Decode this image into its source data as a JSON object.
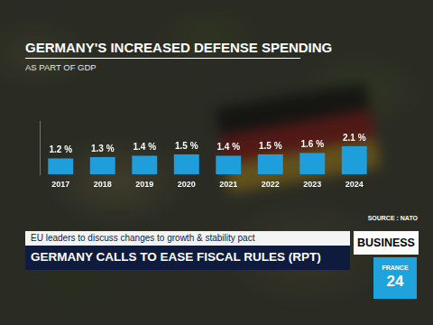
{
  "chart_data": {
    "type": "bar",
    "title": "GERMANY'S INCREASED DEFENSE SPENDING",
    "subtitle": "AS PART OF GDP",
    "categories": [
      "2017",
      "2018",
      "2019",
      "2020",
      "2021",
      "2022",
      "2023",
      "2024"
    ],
    "values": [
      1.2,
      1.3,
      1.4,
      1.5,
      1.4,
      1.5,
      1.6,
      2.1
    ],
    "value_labels": [
      "1.2 %",
      "1.3 %",
      "1.4 %",
      "1.5 %",
      "1.4 %",
      "1.5 %",
      "1.6 %",
      "2.1 %"
    ],
    "color": "#1e9fdc",
    "ylim": [
      0,
      4
    ],
    "grid": false,
    "data_labels": true,
    "tick_labels": "x",
    "source": "SOURCE : NATO"
  },
  "banner": {
    "kicker": "EU leaders to discuss changes to growth & stability pact",
    "headline": "GERMANY CALLS TO EASE FISCAL RULES (RPT)",
    "section": "BUSINESS",
    "logo": [
      "FRANCE",
      "24"
    ]
  }
}
